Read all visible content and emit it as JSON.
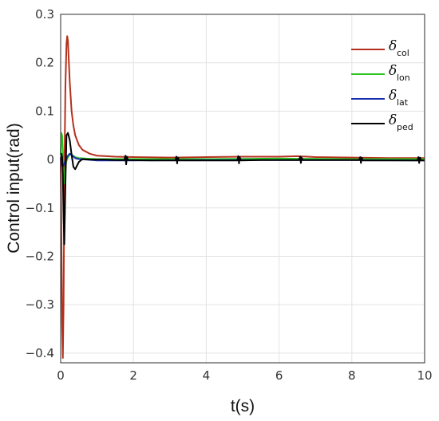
{
  "chart_data": {
    "type": "line",
    "xlabel": "t(s)",
    "ylabel": "Control input(rad)",
    "xlim": [
      0,
      10
    ],
    "ylim": [
      -0.42,
      0.3
    ],
    "xticks": [
      0,
      2,
      4,
      6,
      8,
      10
    ],
    "yticks": [
      -0.4,
      -0.3,
      -0.2,
      -0.1,
      0,
      0.1,
      0.2,
      0.3
    ],
    "ytick_labels": [
      "−0.4",
      "−0.3",
      "−0.2",
      "−0.1",
      "0",
      "0.1",
      "0.2",
      "0.3"
    ],
    "grid": true,
    "legend_position": "top-right",
    "series": [
      {
        "name": "δcol",
        "symbol": "δ",
        "sub": "col",
        "color": "#b5301c",
        "x": [
          0,
          0.02,
          0.04,
          0.06,
          0.08,
          0.1,
          0.13,
          0.16,
          0.18,
          0.2,
          0.22,
          0.25,
          0.3,
          0.35,
          0.4,
          0.5,
          0.6,
          0.8,
          1.0,
          1.5,
          2,
          3,
          4,
          5,
          6,
          6.5,
          7,
          8,
          9,
          10
        ],
        "values": [
          0,
          -0.15,
          -0.34,
          -0.41,
          -0.3,
          -0.05,
          0.15,
          0.24,
          0.255,
          0.245,
          0.21,
          0.16,
          0.1,
          0.07,
          0.05,
          0.03,
          0.02,
          0.012,
          0.008,
          0.006,
          0.005,
          0.004,
          0.005,
          0.006,
          0.006,
          0.007,
          0.005,
          0.004,
          0.003,
          0.003
        ]
      },
      {
        "name": "δlon",
        "symbol": "δ",
        "sub": "lon",
        "color": "#27c51d",
        "x": [
          0,
          0.02,
          0.04,
          0.06,
          0.08,
          0.1,
          0.12,
          0.15,
          0.2,
          0.25,
          0.3,
          0.4,
          0.5,
          0.7,
          1.0,
          2,
          4,
          6,
          8,
          10
        ],
        "values": [
          0.01,
          0.055,
          0.05,
          0.02,
          -0.02,
          -0.05,
          -0.03,
          -0.005,
          0.005,
          0.01,
          0.01,
          0.005,
          0.003,
          0.002,
          0.001,
          0.001,
          0.001,
          0.002,
          0.001,
          0.001
        ]
      },
      {
        "name": "δlat",
        "symbol": "δ",
        "sub": "lat",
        "color": "#1a2fb0",
        "x": [
          0,
          0.03,
          0.06,
          0.1,
          0.15,
          0.2,
          0.25,
          0.3,
          0.35,
          0.4,
          0.5,
          0.7,
          1.0,
          2,
          4,
          6,
          8,
          10
        ],
        "values": [
          0,
          -0.01,
          -0.015,
          -0.008,
          0.0,
          0.008,
          0.012,
          0.01,
          0.006,
          0.003,
          0.001,
          0.0,
          -0.002,
          -0.002,
          -0.001,
          -0.001,
          -0.001,
          -0.002
        ]
      },
      {
        "name": "δped",
        "symbol": "δ",
        "sub": "ped",
        "color": "#000000",
        "x": [
          0,
          0.02,
          0.04,
          0.06,
          0.08,
          0.1,
          0.13,
          0.16,
          0.2,
          0.25,
          0.3,
          0.35,
          0.4,
          0.5,
          0.6,
          0.8,
          1.0,
          1.2,
          1.5,
          1.75,
          1.78,
          1.8,
          1.82,
          1.85,
          2.5,
          3.15,
          3.18,
          3.2,
          3.22,
          3.25,
          4.0,
          4.85,
          4.88,
          4.9,
          4.92,
          4.95,
          5.5,
          6.55,
          6.58,
          6.6,
          6.62,
          6.65,
          7.5,
          8.2,
          8.23,
          8.25,
          8.27,
          8.3,
          9,
          9.8,
          9.83,
          9.85,
          9.87,
          9.9,
          10
        ],
        "values": [
          0,
          0.012,
          0.005,
          -0.03,
          -0.12,
          -0.175,
          -0.05,
          0.05,
          0.055,
          0.04,
          0.01,
          -0.015,
          -0.02,
          -0.005,
          0.001,
          0.0,
          0.0,
          0.0,
          -0.001,
          -0.001,
          0.008,
          -0.01,
          0.006,
          -0.001,
          -0.002,
          -0.002,
          0.006,
          -0.008,
          0.004,
          -0.002,
          -0.002,
          -0.002,
          0.007,
          -0.008,
          0.005,
          -0.002,
          -0.001,
          -0.001,
          0.006,
          -0.007,
          0.004,
          -0.001,
          -0.001,
          -0.001,
          0.005,
          -0.007,
          0.004,
          -0.002,
          -0.002,
          -0.002,
          0.005,
          -0.007,
          0.004,
          -0.002,
          -0.002
        ]
      }
    ]
  }
}
